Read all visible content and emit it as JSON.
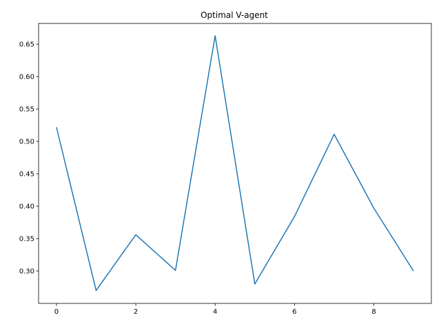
{
  "chart_data": {
    "type": "line",
    "title": "Optimal V-agent",
    "xlabel": "",
    "ylabel": "",
    "x": [
      0,
      1,
      2,
      3,
      4,
      5,
      6,
      7,
      8,
      9
    ],
    "series": [
      {
        "values": [
          0.522,
          0.27,
          0.356,
          0.301,
          0.663,
          0.28,
          0.384,
          0.511,
          0.397,
          0.3
        ],
        "color": "#1f77b4"
      }
    ],
    "xlim": [
      -0.45,
      9.45
    ],
    "ylim": [
      0.25,
      0.682
    ],
    "xticks": [
      0,
      2,
      4,
      6,
      8
    ],
    "xtick_labels": [
      "0",
      "2",
      "4",
      "6",
      "8"
    ],
    "yticks": [
      0.3,
      0.35,
      0.4,
      0.45,
      0.5,
      0.55,
      0.6,
      0.65
    ],
    "ytick_labels": [
      "0.30",
      "0.35",
      "0.40",
      "0.45",
      "0.50",
      "0.55",
      "0.60",
      "0.65"
    ],
    "grid": false,
    "legend": "none"
  }
}
